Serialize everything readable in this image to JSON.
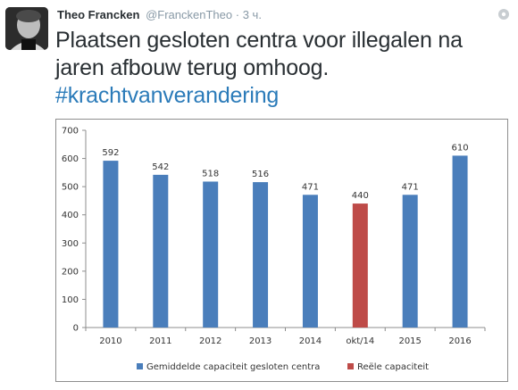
{
  "tweet": {
    "author_name": "Theo Francken",
    "author_handle": "@FranckenTheo",
    "separator": "·",
    "time": "3 ч.",
    "text": "Plaatsen gesloten centra voor illegalen na jaren afbouw terug omhoog.",
    "hashtag": "#krachtvanverandering",
    "pin_icon": "pin-icon"
  },
  "colors": {
    "series_avg": "#4a7ebb",
    "series_real": "#be4b48",
    "hashtag": "#2b7bb9"
  },
  "chart_data": {
    "type": "bar",
    "categories": [
      "2010",
      "2011",
      "2012",
      "2013",
      "2014",
      "okt/14",
      "2015",
      "2016"
    ],
    "series": [
      {
        "name": "Gemiddelde capaciteit gesloten centra",
        "values": [
          592,
          542,
          518,
          516,
          471,
          null,
          471,
          610
        ]
      },
      {
        "name": "Reële capaciteit",
        "values": [
          null,
          null,
          null,
          null,
          null,
          440,
          null,
          null
        ]
      }
    ],
    "data_labels": [
      "592",
      "542",
      "518",
      "516",
      "471",
      "440",
      "471",
      "610"
    ],
    "yticks": [
      0,
      100,
      200,
      300,
      400,
      500,
      600,
      700
    ],
    "ylim": [
      0,
      700
    ],
    "grid": false,
    "legend": "bottom"
  }
}
